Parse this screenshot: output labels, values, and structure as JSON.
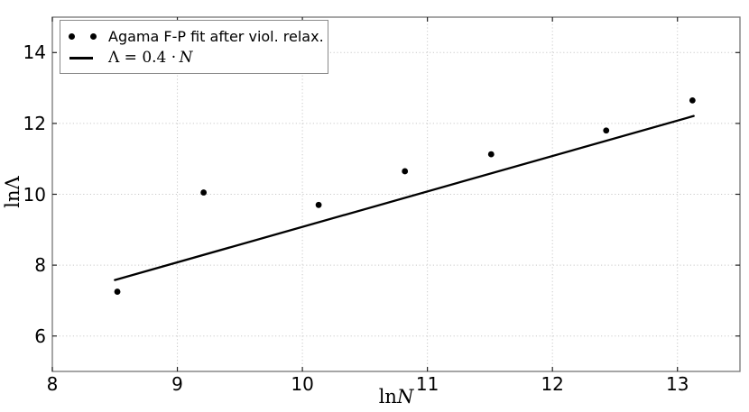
{
  "chart_data": {
    "type": "scatter",
    "title": "",
    "xlabel": {
      "prefix": "ln",
      "variable": "N"
    },
    "ylabel": {
      "prefix": "ln",
      "variable": "Λ"
    },
    "xlim": [
      8,
      13.5
    ],
    "ylim": [
      5,
      15
    ],
    "x_ticks": [
      "8",
      "9",
      "10",
      "11",
      "12",
      "13"
    ],
    "y_ticks": [
      "6",
      "8",
      "10",
      "12",
      "14"
    ],
    "grid": "dotted, both axes",
    "series": [
      {
        "name": "Agama F-P fit after viol. relax.",
        "type": "scatter",
        "marker": "dot",
        "color": "#000000",
        "x": [
          8.52,
          9.21,
          10.13,
          10.82,
          11.51,
          12.43,
          13.12
        ],
        "y": [
          7.25,
          10.05,
          9.7,
          10.65,
          11.13,
          11.8,
          12.65
        ]
      },
      {
        "name": "Λ = 0.4 · N",
        "type": "line",
        "color": "#000000",
        "x": [
          8.5,
          13.13
        ],
        "y": [
          7.58,
          12.21
        ]
      }
    ],
    "legend": {
      "position": "upper left",
      "items": [
        {
          "marker": "two-dots",
          "label": "Agama F-P fit after viol. relax."
        },
        {
          "marker": "line",
          "label": "Λ = 0.4 · N",
          "label_prefix": "Λ = 0.4 ·",
          "label_variable": "N"
        }
      ]
    },
    "colors": {
      "background": "#ffffff",
      "spine": "#777777",
      "grid": "#c9c9c9",
      "tick": "#222222",
      "data": "#000000"
    }
  }
}
